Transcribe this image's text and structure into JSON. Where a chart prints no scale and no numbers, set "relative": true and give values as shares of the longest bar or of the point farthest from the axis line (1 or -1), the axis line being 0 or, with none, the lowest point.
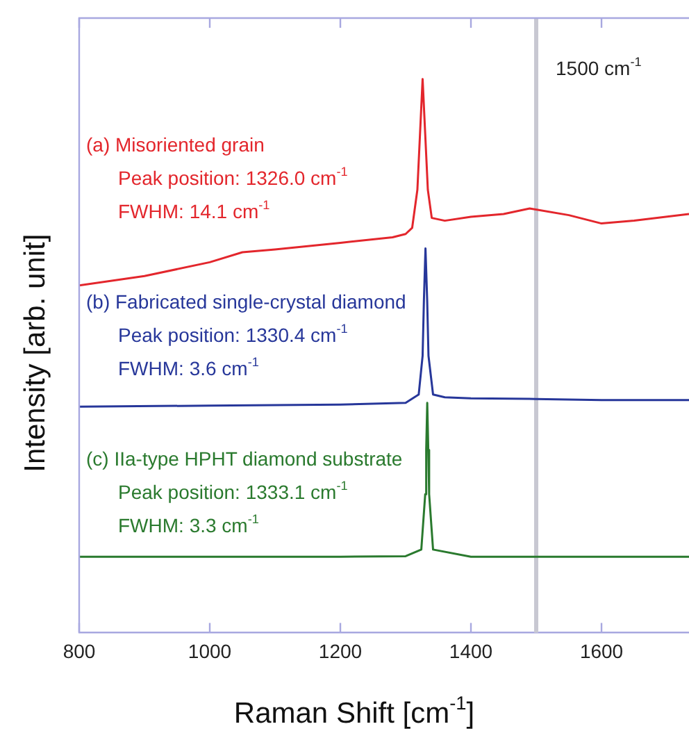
{
  "chart_data": {
    "type": "line",
    "xlabel": "Raman Shift [cm$^{-1}$]",
    "ylabel": "Intensity [arb. unit]",
    "relative": true,
    "xlim": [
      800,
      1734
    ],
    "xticks": [
      800,
      1000,
      1200,
      1400,
      1600
    ],
    "marker": "none",
    "legend": false,
    "grid": false,
    "series": [
      {
        "name": "(a) Misoriented grain",
        "color": "#e3262c",
        "x": [
          800,
          900,
          1000,
          1050,
          1100,
          1200,
          1280,
          1300,
          1310,
          1318,
          1322,
          1326,
          1330,
          1334,
          1340,
          1360,
          1400,
          1450,
          1490,
          1550,
          1600,
          1650,
          1734
        ],
        "values": [
          0.627,
          0.644,
          0.669,
          0.687,
          0.692,
          0.704,
          0.714,
          0.72,
          0.731,
          0.8,
          0.9,
          1,
          0.9,
          0.8,
          0.749,
          0.744,
          0.751,
          0.756,
          0.766,
          0.754,
          0.739,
          0.744,
          0.756
        ]
      },
      {
        "name": "(b) Fabricated single-crystal diamond",
        "color": "#27379a",
        "x": [
          800,
          1000,
          1200,
          1300,
          1320,
          1326,
          1328,
          1330.4,
          1333,
          1335,
          1342,
          1360,
          1400,
          1500,
          1600,
          1734
        ],
        "values": [
          0.408,
          0.41,
          0.412,
          0.415,
          0.43,
          0.5,
          0.6,
          0.694,
          0.6,
          0.5,
          0.43,
          0.425,
          0.423,
          0.422,
          0.42,
          0.42
        ]
      },
      {
        "name": "(c) IIa-type HPHT diamond substrate",
        "color": "#2a7a2e",
        "x": [
          800,
          1000,
          1200,
          1300,
          1324,
          1330,
          1331.5,
          1333.1,
          1334.7,
          1336,
          1342,
          1400,
          1500,
          1600,
          1734
        ],
        "values": [
          0.137,
          0.137,
          0.137,
          0.138,
          0.15,
          0.25,
          0.33,
          0.415,
          0.33,
          0.25,
          0.15,
          0.137,
          0.137,
          0.137,
          0.137
        ]
      }
    ],
    "annotations": [
      "Peak position: 1326.0 cm$^{-1}$",
      "FWHM: 14.1 cm$^{-1}$",
      "Peak position: 1330.4 cm$^{-1}$",
      "FWHM: 3.6 cm$^{-1}$",
      "Peak position: 1333.1 cm$^{-1}$",
      "FWHM: 3.3 cm$^{-1}$"
    ],
    "ref_lines": [
      {
        "axis": "x",
        "value": 1500,
        "label": "1500 cm$^{-1}$",
        "color": "#c8c8d2"
      }
    ]
  }
}
